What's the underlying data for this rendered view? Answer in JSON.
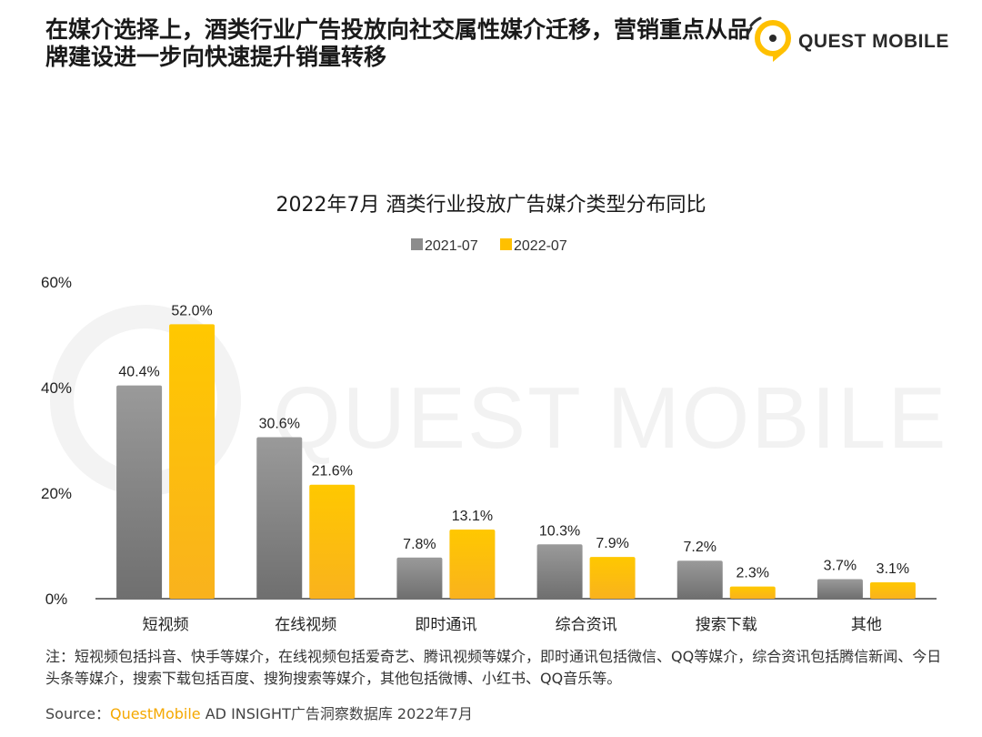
{
  "header": {
    "title": "在媒介选择上，酒类行业广告投放向社交属性媒介迁移，营销重点从品牌建设进一步向快速提升销量转移",
    "logo_text": "QUEST MOBILE"
  },
  "watermark": "QUEST MOBILE",
  "chart_data": {
    "type": "bar",
    "title": "2022年7月 酒类行业投放广告媒介类型分布同比",
    "categories": [
      "短视频",
      "在线视频",
      "即时通讯",
      "综合资讯",
      "搜索下载",
      "其他"
    ],
    "series": [
      {
        "name": "2021-07",
        "values": [
          40.4,
          30.6,
          7.8,
          10.3,
          7.2,
          3.7
        ],
        "labels": [
          "40.4%",
          "30.6%",
          "7.8%",
          "10.3%",
          "7.2%",
          "3.7%"
        ]
      },
      {
        "name": "2022-07",
        "values": [
          52.0,
          21.6,
          13.1,
          7.9,
          2.3,
          3.1
        ],
        "labels": [
          "52.0%",
          "21.6%",
          "13.1%",
          "7.9%",
          "2.3%",
          "3.1%"
        ]
      }
    ],
    "yticks": [
      0,
      20,
      40,
      60
    ],
    "ytick_labels": [
      "0%",
      "20%",
      "40%",
      "60%"
    ],
    "ylim": [
      0,
      60
    ],
    "legend_position": "top-center",
    "colors": {
      "2021-07": "#8c8c8c",
      "2022-07": "#ffc000"
    }
  },
  "footer": {
    "note": "注：短视频包括抖音、快手等媒介，在线视频包括爱奇艺、腾讯视频等媒介，即时通讯包括微信、QQ等媒介，综合资讯包括腾信新闻、今日头条等媒介，搜索下载包括百度、搜狗搜索等媒介，其他包括微博、小红书、QQ音乐等。",
    "source_prefix": "Source：",
    "source_brand": "QuestMobile",
    "source_rest": " AD INSIGHT广告洞察数据库 2022年7月"
  }
}
